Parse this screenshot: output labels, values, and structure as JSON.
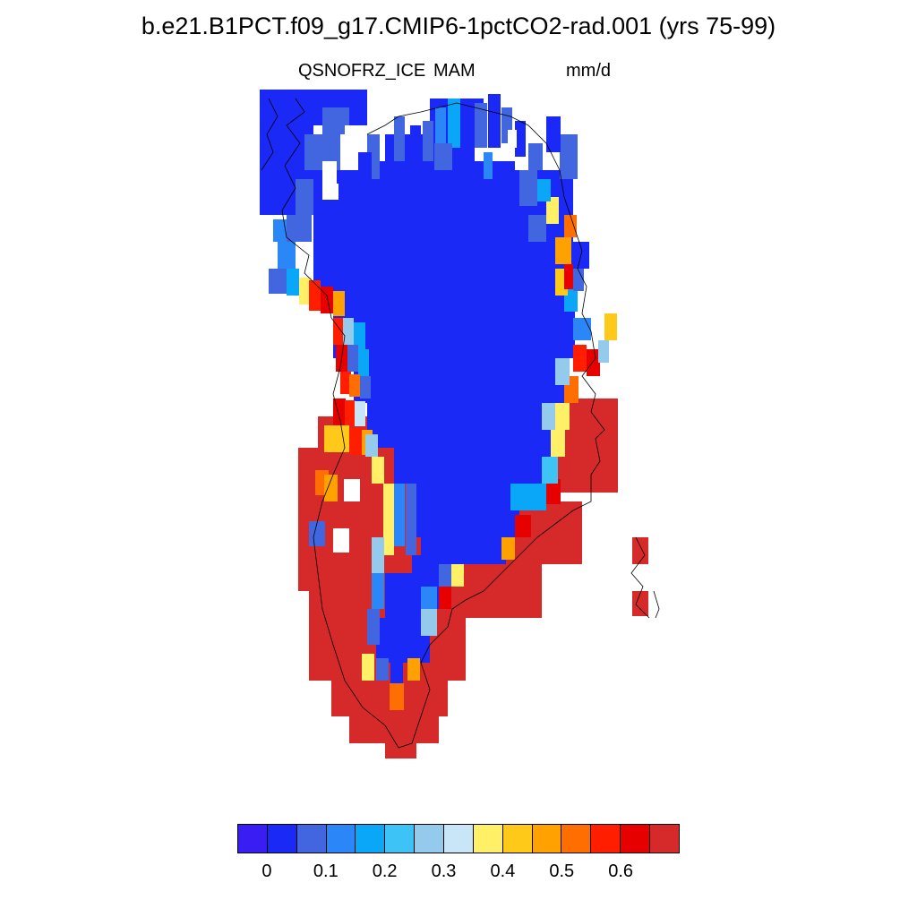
{
  "title": "b.e21.B1PCT.f09_g17.CMIP6-1pctCO2-rad.001 (yrs 75-99)",
  "subtitles": {
    "variable": "QSNOFRZ_ICE",
    "season": "MAM",
    "units": "mm/d"
  },
  "map": {
    "region": "Greenland",
    "projection": "polar stereographic",
    "ocean_color": "#ffffff",
    "coastline_color": "#000000",
    "interior_category": 1,
    "coastal_band_categories_north": [
      1,
      2,
      4,
      5,
      3,
      6,
      7
    ],
    "coastal_band_categories_mid": [
      3,
      5,
      6,
      8,
      9,
      11,
      12,
      13
    ],
    "southern_tip_category": 14
  },
  "colorbar": {
    "colors": [
      "#3a1df2",
      "#1a29f5",
      "#4166e0",
      "#2b86f7",
      "#0aa6f7",
      "#3dc3f5",
      "#94cbec",
      "#c8e6f8",
      "#fff067",
      "#ffc91a",
      "#ffa100",
      "#ff6e00",
      "#ff1e00",
      "#e60000",
      "#d62a2a"
    ],
    "tick_labels": [
      "0",
      "0.1",
      "0.2",
      "0.3",
      "0.4",
      "0.5",
      "0.6"
    ]
  }
}
